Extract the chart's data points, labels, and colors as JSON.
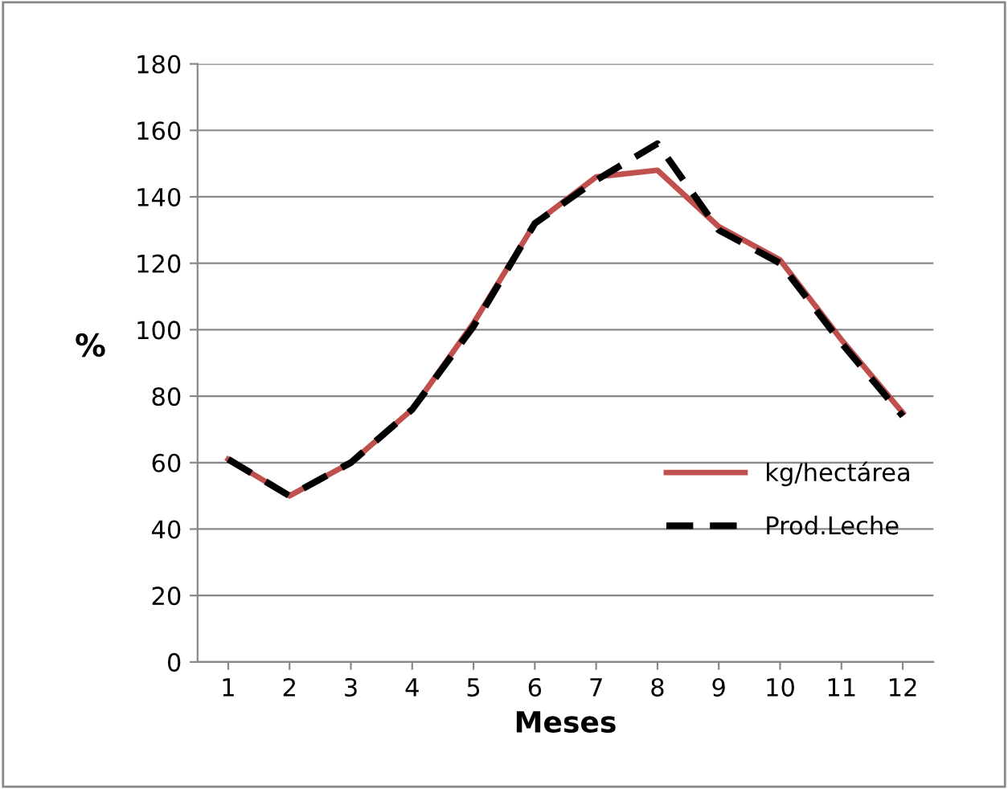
{
  "chart_data": {
    "type": "line",
    "xlabel": "Meses",
    "ylabel": "%",
    "categories": [
      "1",
      "2",
      "3",
      "4",
      "5",
      "6",
      "7",
      "8",
      "9",
      "10",
      "11",
      "12"
    ],
    "series": [
      {
        "name": "kg/hectárea",
        "color": "#c0504d",
        "line_style": "solid",
        "values": [
          61,
          50,
          60,
          76,
          102,
          132,
          146,
          148,
          131,
          121,
          97,
          75
        ]
      },
      {
        "name": "Prod.Leche",
        "color": "#000000",
        "line_style": "dashed",
        "values": [
          61,
          50,
          60,
          76,
          101,
          132,
          145,
          156,
          130,
          120,
          96,
          74
        ]
      }
    ],
    "ylim": [
      0,
      180
    ],
    "yticks": [
      0,
      20,
      40,
      60,
      80,
      100,
      120,
      140,
      160,
      180
    ],
    "grid": "y",
    "legend": "right",
    "marker": "none"
  }
}
